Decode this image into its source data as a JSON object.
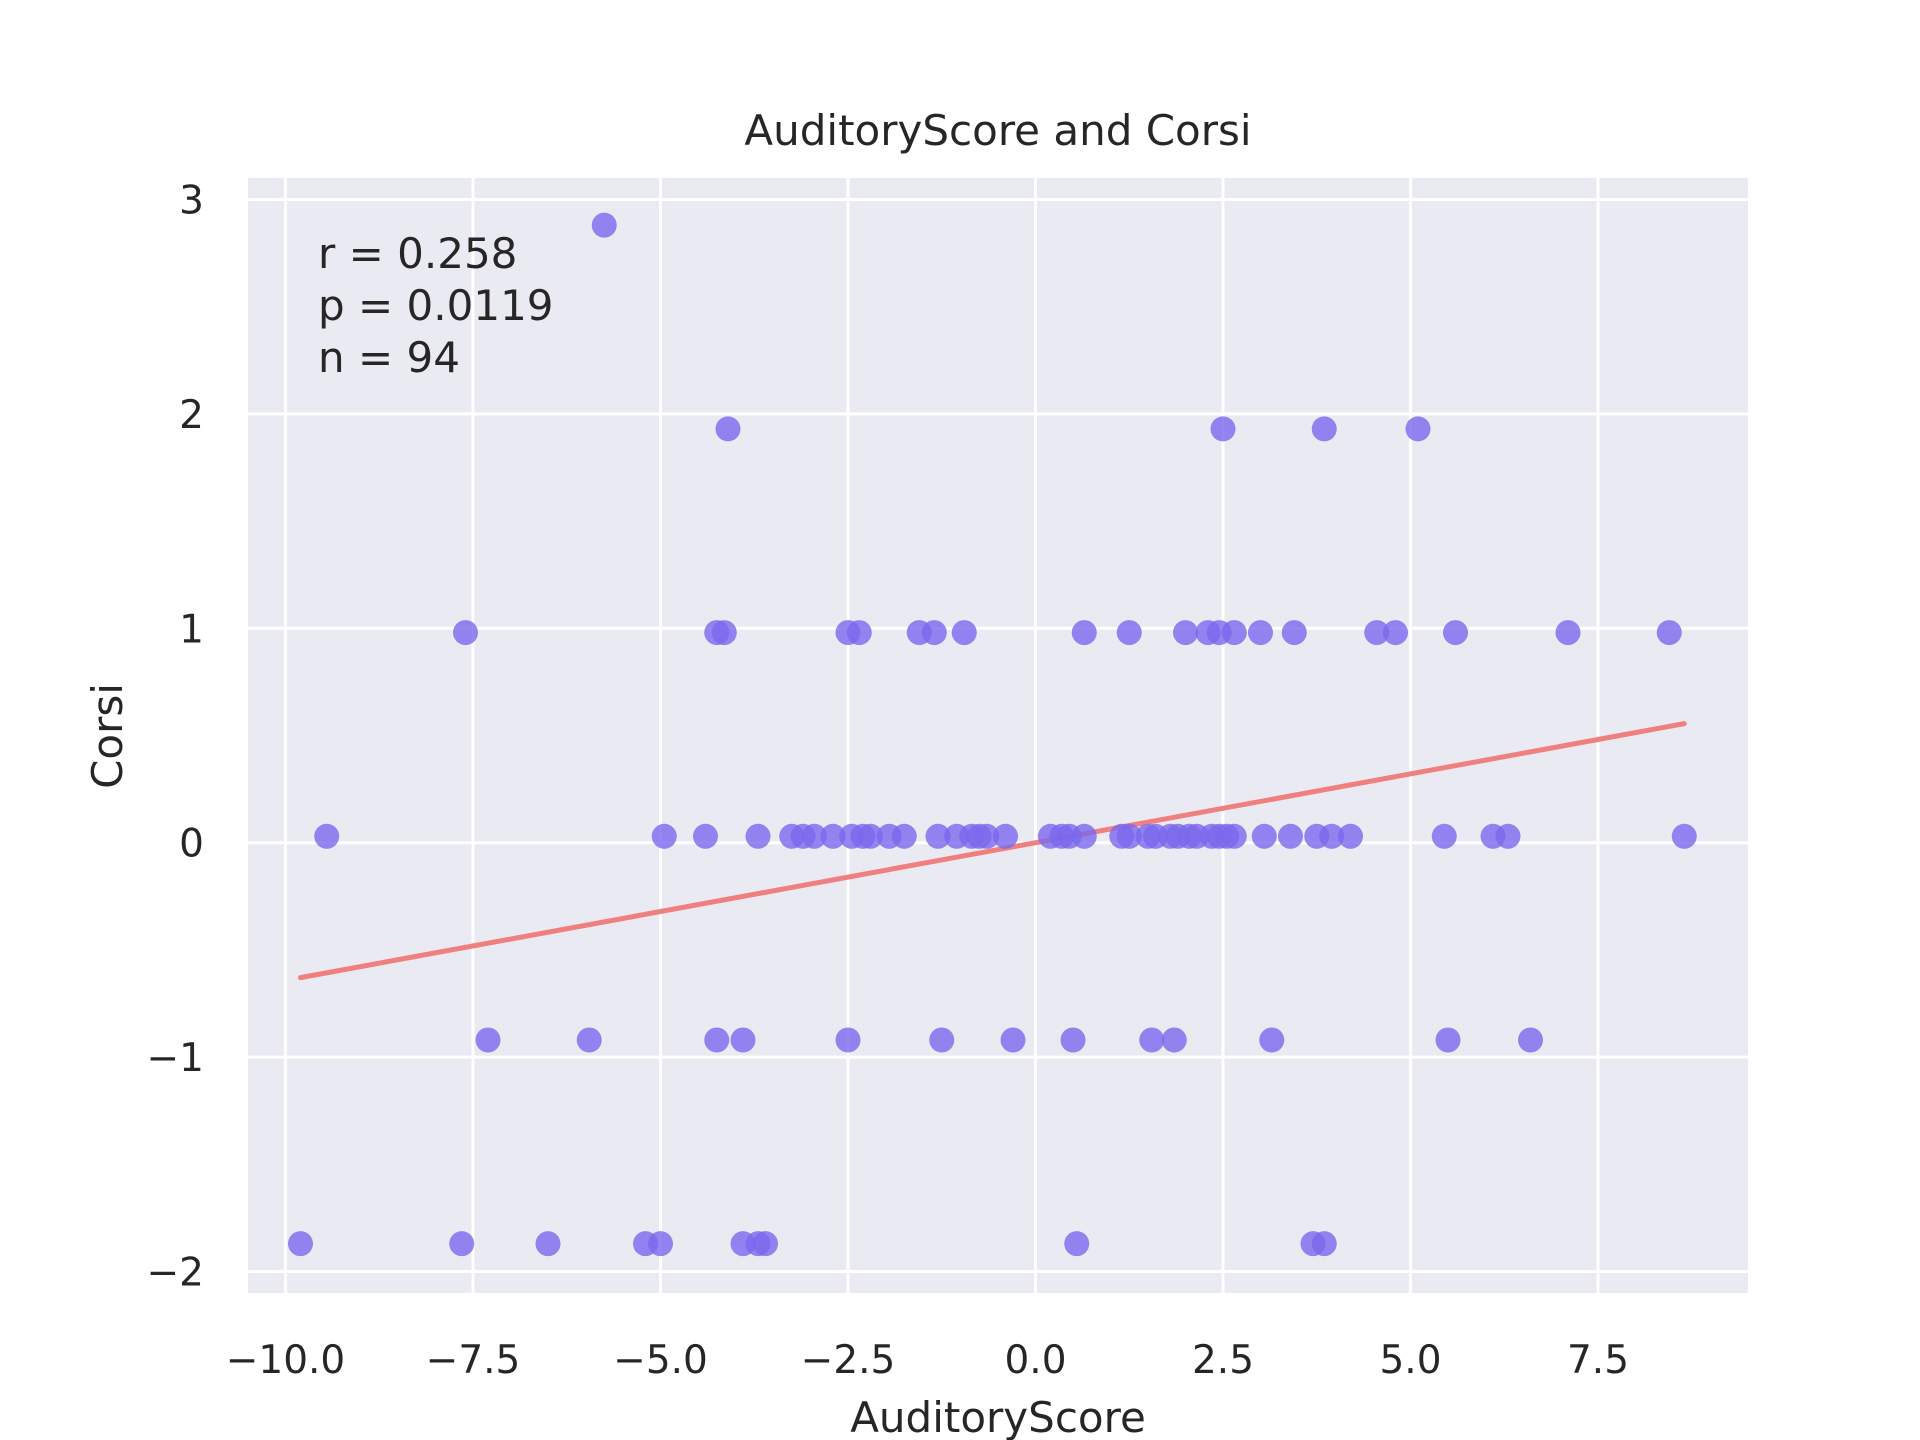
{
  "chart_data": {
    "type": "scatter",
    "title": "AuditoryScore and Corsi",
    "xlabel": "AuditoryScore",
    "ylabel": "Corsi",
    "xlim": [
      -10.5,
      9.5
    ],
    "ylim": [
      -2.1,
      3.1
    ],
    "xticks": [
      -10.0,
      -7.5,
      -5.0,
      -2.5,
      0.0,
      2.5,
      5.0,
      7.5
    ],
    "xtick_labels": [
      "−10.0",
      "−7.5",
      "−5.0",
      "−2.5",
      "0.0",
      "2.5",
      "5.0",
      "7.5"
    ],
    "yticks": [
      -2,
      -1,
      0,
      1,
      2,
      3
    ],
    "ytick_labels": [
      "−2",
      "−1",
      "0",
      "1",
      "2",
      "3"
    ],
    "grid": true,
    "background": "#eaeaf2",
    "point_color": "#7b68ee",
    "line_color": "#f08080",
    "annotation": [
      "r = 0.258",
      "p = 0.0119",
      "n = 94"
    ],
    "regression": {
      "slope": 0.0642,
      "intercept": 0.0
    },
    "points": [
      [
        -5.75,
        2.88
      ],
      [
        -4.1,
        1.93
      ],
      [
        2.5,
        1.93
      ],
      [
        3.85,
        1.93
      ],
      [
        5.1,
        1.93
      ],
      [
        -7.6,
        0.98
      ],
      [
        -4.25,
        0.98
      ],
      [
        -4.15,
        0.98
      ],
      [
        -2.5,
        0.98
      ],
      [
        -2.35,
        0.98
      ],
      [
        -1.55,
        0.98
      ],
      [
        -1.35,
        0.98
      ],
      [
        -0.95,
        0.98
      ],
      [
        0.65,
        0.98
      ],
      [
        1.25,
        0.98
      ],
      [
        2.0,
        0.98
      ],
      [
        2.3,
        0.98
      ],
      [
        2.45,
        0.98
      ],
      [
        2.65,
        0.98
      ],
      [
        3.0,
        0.98
      ],
      [
        3.45,
        0.98
      ],
      [
        4.55,
        0.98
      ],
      [
        4.8,
        0.98
      ],
      [
        5.6,
        0.98
      ],
      [
        7.1,
        0.98
      ],
      [
        8.45,
        0.98
      ],
      [
        -9.45,
        0.03
      ],
      [
        -4.95,
        0.03
      ],
      [
        -4.4,
        0.03
      ],
      [
        -3.7,
        0.03
      ],
      [
        -3.25,
        0.03
      ],
      [
        -3.1,
        0.03
      ],
      [
        -2.95,
        0.03
      ],
      [
        -2.7,
        0.03
      ],
      [
        -2.45,
        0.03
      ],
      [
        -2.3,
        0.03
      ],
      [
        -2.2,
        0.03
      ],
      [
        -1.95,
        0.03
      ],
      [
        -1.75,
        0.03
      ],
      [
        -1.3,
        0.03
      ],
      [
        -1.05,
        0.03
      ],
      [
        -0.85,
        0.03
      ],
      [
        -0.75,
        0.03
      ],
      [
        -0.65,
        0.03
      ],
      [
        -0.4,
        0.03
      ],
      [
        0.2,
        0.03
      ],
      [
        0.35,
        0.03
      ],
      [
        0.45,
        0.03
      ],
      [
        0.65,
        0.03
      ],
      [
        1.15,
        0.03
      ],
      [
        1.25,
        0.03
      ],
      [
        1.5,
        0.03
      ],
      [
        1.6,
        0.03
      ],
      [
        1.8,
        0.03
      ],
      [
        1.9,
        0.03
      ],
      [
        2.05,
        0.03
      ],
      [
        2.15,
        0.03
      ],
      [
        2.35,
        0.03
      ],
      [
        2.45,
        0.03
      ],
      [
        2.55,
        0.03
      ],
      [
        2.65,
        0.03
      ],
      [
        3.05,
        0.03
      ],
      [
        3.4,
        0.03
      ],
      [
        3.75,
        0.03
      ],
      [
        3.95,
        0.03
      ],
      [
        4.2,
        0.03
      ],
      [
        5.45,
        0.03
      ],
      [
        6.1,
        0.03
      ],
      [
        6.3,
        0.03
      ],
      [
        8.65,
        0.03
      ],
      [
        -7.3,
        -0.92
      ],
      [
        -5.95,
        -0.92
      ],
      [
        -4.25,
        -0.92
      ],
      [
        -3.9,
        -0.92
      ],
      [
        -2.5,
        -0.92
      ],
      [
        -1.25,
        -0.92
      ],
      [
        -0.3,
        -0.92
      ],
      [
        0.5,
        -0.92
      ],
      [
        1.55,
        -0.92
      ],
      [
        1.85,
        -0.92
      ],
      [
        3.15,
        -0.92
      ],
      [
        5.5,
        -0.92
      ],
      [
        6.6,
        -0.92
      ],
      [
        -9.8,
        -1.87
      ],
      [
        -7.65,
        -1.87
      ],
      [
        -6.5,
        -1.87
      ],
      [
        -5.2,
        -1.87
      ],
      [
        -5.0,
        -1.87
      ],
      [
        -3.9,
        -1.87
      ],
      [
        -3.7,
        -1.87
      ],
      [
        -3.6,
        -1.87
      ],
      [
        0.55,
        -1.87
      ],
      [
        3.7,
        -1.87
      ],
      [
        3.85,
        -1.87
      ]
    ]
  }
}
